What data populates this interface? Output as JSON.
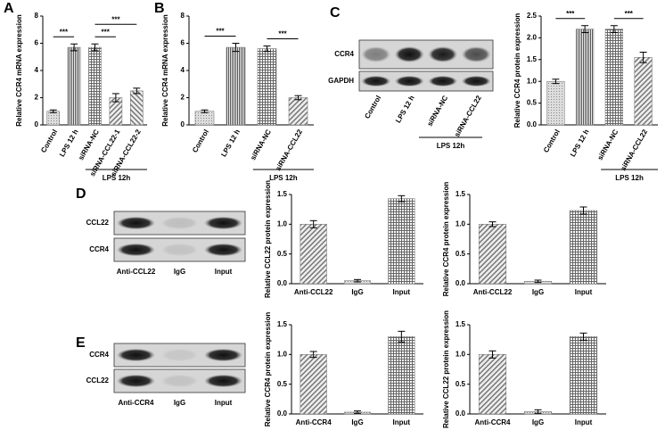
{
  "chart_data": [
    {
      "type": "bar",
      "panel": "A",
      "y_label": "Relative CCR4 mRNA expression",
      "categories": [
        "Control",
        "LPS 12 h",
        "siRNA-NC",
        "siRNA-CCL22-1",
        "siRNA-CCL22-2"
      ],
      "values": [
        1.0,
        5.7,
        5.7,
        2.0,
        2.5
      ],
      "errors": [
        0.1,
        0.25,
        0.25,
        0.3,
        0.2
      ],
      "ylim": [
        0,
        8
      ],
      "yticks": [
        0,
        2,
        4,
        6,
        8
      ],
      "group_label": "LPS 12h",
      "significance": [
        {
          "label": "***",
          "between": [
            "Control",
            "LPS 12 h"
          ]
        },
        {
          "label": "***",
          "between": [
            "siRNA-NC",
            "siRNA-CCL22-1"
          ]
        },
        {
          "label": "***",
          "between": [
            "siRNA-NC",
            "siRNA-CCL22-2"
          ]
        }
      ]
    },
    {
      "type": "bar",
      "panel": "B",
      "y_label": "Relative CCR4 mRNA expression",
      "categories": [
        "Control",
        "LPS 12 h",
        "siRNA-NC",
        "siRNA-CCL22"
      ],
      "values": [
        1.0,
        5.7,
        5.6,
        2.0
      ],
      "errors": [
        0.1,
        0.3,
        0.2,
        0.15
      ],
      "ylim": [
        0,
        8
      ],
      "yticks": [
        0,
        2,
        4,
        6,
        8
      ],
      "group_label": "LPS 12h",
      "significance": [
        {
          "label": "***",
          "between": [
            "Control",
            "LPS 12 h"
          ]
        },
        {
          "label": "***",
          "between": [
            "siRNA-NC",
            "siRNA-CCL22"
          ]
        }
      ]
    },
    {
      "type": "bar",
      "y_label": "Relative CCR4 protein expression",
      "categories": [
        "Control",
        "LPS 12 h",
        "siRNA-NC",
        "siRNA-CCL22"
      ],
      "values": [
        1.0,
        2.2,
        2.2,
        1.55
      ],
      "errors": [
        0.05,
        0.08,
        0.08,
        0.12
      ],
      "ylim": [
        0,
        2.5
      ],
      "yticks": [
        {
          "value": 0,
          "label": "0.0"
        },
        0.5,
        {
          "value": 1,
          "label": "1.0"
        },
        1.5,
        {
          "value": 2,
          "label": "2.0"
        },
        2.5
      ],
      "group_label": "LPS 12h",
      "significance": [
        {
          "label": "***",
          "between": [
            "Control",
            "LPS 12 h"
          ]
        },
        {
          "label": "***",
          "between": [
            "siRNA-NC",
            "siRNA-CCL22"
          ]
        }
      ]
    },
    {
      "type": "bar",
      "y_label": "Relative CCL22 protein expression",
      "categories": [
        "Anti-CCL22",
        "IgG",
        "Input"
      ],
      "values": [
        1.0,
        0.05,
        1.43
      ],
      "errors": [
        0.06,
        0.02,
        0.05
      ],
      "ylim": [
        0,
        1.5
      ],
      "yticks": [
        {
          "value": 0,
          "label": "0.0"
        },
        0.5,
        {
          "value": 1,
          "label": "1.0"
        },
        1.5
      ]
    },
    {
      "type": "bar",
      "y_label": "Relative CCR4 protein expression",
      "categories": [
        "Anti-CCL22",
        "IgG",
        "Input"
      ],
      "values": [
        1.0,
        0.04,
        1.23
      ],
      "errors": [
        0.04,
        0.02,
        0.06
      ],
      "ylim": [
        0,
        1.5
      ],
      "yticks": [
        {
          "value": 0,
          "label": "0.0"
        },
        0.5,
        {
          "value": 1,
          "label": "1.0"
        },
        1.5
      ]
    },
    {
      "type": "bar",
      "y_label": "Relative CCR4 protein expression",
      "categories": [
        "Anti-CCR4",
        "IgG",
        "Input"
      ],
      "values": [
        1.0,
        0.03,
        1.3
      ],
      "errors": [
        0.05,
        0.02,
        0.09
      ],
      "ylim": [
        0,
        1.5
      ],
      "yticks": [
        {
          "value": 0,
          "label": "0.0"
        },
        0.5,
        {
          "value": 1,
          "label": "1.0"
        },
        1.5
      ]
    },
    {
      "type": "bar",
      "y_label": "Relative CCL22 protein expression",
      "categories": [
        "Anti-CCR4",
        "IgG",
        "Input"
      ],
      "values": [
        1.0,
        0.04,
        1.3
      ],
      "errors": [
        0.06,
        0.03,
        0.06
      ],
      "ylim": [
        0,
        1.5
      ],
      "yticks": [
        {
          "value": 0,
          "label": "0.0"
        },
        0.5,
        {
          "value": 1,
          "label": "1.0"
        },
        1.5
      ]
    }
  ],
  "blots": [
    {
      "panel": "C",
      "rows": [
        "CCR4",
        "GAPDH"
      ],
      "lanes": [
        "Control",
        "LPS 12 h",
        "siRNA-NC",
        "siRNA-CCL22"
      ],
      "group_label": "LPS 12h"
    },
    {
      "panel": "D",
      "rows": [
        "CCL22",
        "CCR4"
      ],
      "lanes": [
        "Anti-CCL22",
        "IgG",
        "Input"
      ]
    },
    {
      "panel": "E",
      "rows": [
        "CCR4",
        "CCL22"
      ],
      "lanes": [
        "Anti-CCR4",
        "IgG",
        "Input"
      ]
    }
  ]
}
